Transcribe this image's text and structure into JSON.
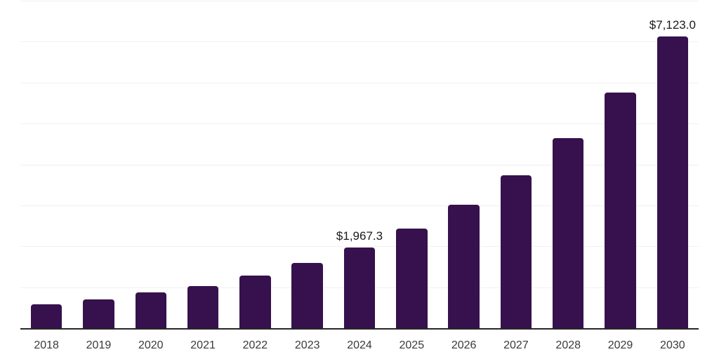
{
  "chart_data": {
    "type": "bar",
    "title": "",
    "xlabel": "",
    "ylabel": "",
    "categories": [
      "2018",
      "2019",
      "2020",
      "2021",
      "2022",
      "2023",
      "2024",
      "2025",
      "2026",
      "2027",
      "2028",
      "2029",
      "2030"
    ],
    "values": [
      590,
      710,
      875,
      1030,
      1290,
      1600,
      1967.3,
      2440,
      3020,
      3730,
      4640,
      5755,
      7123.0
    ],
    "data_labels": [
      {
        "category": "2024",
        "text": "$1,967.3"
      },
      {
        "category": "2030",
        "text": "$7,123.0"
      }
    ],
    "ylim": [
      0,
      8000
    ],
    "gridline_step": 1000,
    "grid": true,
    "legend": "none",
    "bar_color": "#36114d",
    "axis_color": "#262626",
    "gridline_color": "#f0f0f0",
    "tick_label_color": "#3a3a3a",
    "value_label_color": "#1a1a1a"
  }
}
